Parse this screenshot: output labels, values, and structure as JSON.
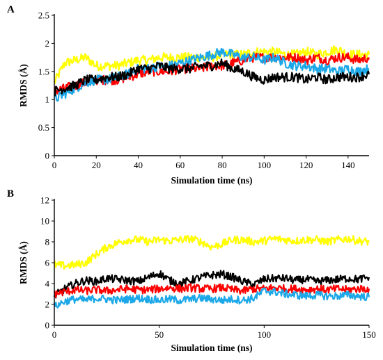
{
  "chart_data": [
    {
      "panel": "A",
      "type": "line",
      "xlabel": "Simulation time (ns)",
      "ylabel": "RMDS (Å)",
      "xlim": [
        0,
        150
      ],
      "ylim": [
        0,
        2.5
      ],
      "xticks": [
        0,
        20,
        40,
        60,
        80,
        100,
        120,
        140
      ],
      "yticks": [
        0,
        0.5,
        1,
        1.5,
        2,
        2.5
      ],
      "grid": false,
      "legend": "none",
      "series": [
        {
          "color": "#ffff00",
          "x": [
            0,
            5,
            10,
            15,
            20,
            25,
            30,
            35,
            40,
            45,
            50,
            55,
            60,
            65,
            70,
            75,
            80,
            85,
            90,
            95,
            100,
            105,
            110,
            115,
            120,
            125,
            130,
            135,
            140,
            145,
            150
          ],
          "y": [
            1.3,
            1.65,
            1.7,
            1.75,
            1.6,
            1.6,
            1.6,
            1.65,
            1.7,
            1.7,
            1.75,
            1.75,
            1.75,
            1.75,
            1.75,
            1.75,
            1.8,
            1.8,
            1.8,
            1.85,
            1.85,
            1.85,
            1.8,
            1.8,
            1.85,
            1.8,
            1.85,
            1.9,
            1.8,
            1.8,
            1.8
          ]
        },
        {
          "color": "#ff0000",
          "x": [
            0,
            5,
            10,
            15,
            20,
            25,
            30,
            35,
            40,
            45,
            50,
            55,
            60,
            65,
            70,
            75,
            80,
            85,
            90,
            95,
            100,
            105,
            110,
            115,
            120,
            125,
            130,
            135,
            140,
            145,
            150
          ],
          "y": [
            1.15,
            1.2,
            1.25,
            1.3,
            1.35,
            1.35,
            1.35,
            1.4,
            1.45,
            1.5,
            1.5,
            1.5,
            1.55,
            1.55,
            1.55,
            1.6,
            1.6,
            1.65,
            1.7,
            1.75,
            1.75,
            1.75,
            1.75,
            1.75,
            1.7,
            1.75,
            1.7,
            1.75,
            1.75,
            1.7,
            1.75
          ]
        },
        {
          "color": "#1ca8e8",
          "x": [
            0,
            5,
            10,
            15,
            20,
            25,
            30,
            35,
            40,
            45,
            50,
            55,
            60,
            65,
            70,
            75,
            80,
            85,
            90,
            95,
            100,
            105,
            110,
            115,
            120,
            125,
            130,
            135,
            140,
            145,
            150
          ],
          "y": [
            1.0,
            1.1,
            1.2,
            1.3,
            1.35,
            1.35,
            1.4,
            1.45,
            1.55,
            1.55,
            1.6,
            1.6,
            1.65,
            1.7,
            1.75,
            1.8,
            1.85,
            1.8,
            1.75,
            1.75,
            1.7,
            1.75,
            1.65,
            1.6,
            1.6,
            1.55,
            1.55,
            1.5,
            1.55,
            1.5,
            1.55
          ]
        },
        {
          "color": "#000000",
          "x": [
            0,
            5,
            10,
            15,
            20,
            25,
            30,
            35,
            40,
            45,
            50,
            55,
            60,
            65,
            70,
            75,
            80,
            85,
            90,
            95,
            100,
            105,
            110,
            115,
            120,
            125,
            130,
            135,
            140,
            145,
            150
          ],
          "y": [
            1.15,
            1.2,
            1.25,
            1.35,
            1.35,
            1.4,
            1.4,
            1.45,
            1.55,
            1.55,
            1.6,
            1.55,
            1.55,
            1.55,
            1.6,
            1.6,
            1.65,
            1.55,
            1.5,
            1.4,
            1.35,
            1.4,
            1.4,
            1.4,
            1.35,
            1.4,
            1.35,
            1.4,
            1.4,
            1.4,
            1.45
          ]
        }
      ]
    },
    {
      "panel": "B",
      "type": "line",
      "xlabel": "Simulation time (ns)",
      "ylabel": "RMDS (Å)",
      "xlim": [
        0,
        150
      ],
      "ylim": [
        0,
        12
      ],
      "xticks": [
        0,
        50,
        100,
        150
      ],
      "yticks": [
        0,
        2,
        4,
        6,
        8,
        10,
        12
      ],
      "grid": false,
      "legend": "none",
      "series": [
        {
          "color": "#ffff00",
          "x": [
            0,
            5,
            10,
            15,
            20,
            25,
            30,
            35,
            40,
            45,
            50,
            55,
            60,
            65,
            70,
            75,
            80,
            85,
            90,
            95,
            100,
            105,
            110,
            115,
            120,
            125,
            130,
            135,
            140,
            145,
            150
          ],
          "y": [
            5.8,
            5.7,
            5.8,
            6.0,
            6.8,
            7.5,
            7.9,
            8.2,
            8.2,
            8.0,
            8.2,
            8.1,
            8.2,
            8.3,
            8.0,
            7.5,
            7.8,
            8.2,
            8.2,
            8.0,
            8.1,
            8.3,
            8.2,
            8.1,
            8.2,
            8.2,
            8.0,
            8.2,
            8.3,
            8.1,
            8.0
          ]
        },
        {
          "color": "#000000",
          "x": [
            0,
            5,
            10,
            15,
            20,
            25,
            30,
            35,
            40,
            45,
            50,
            55,
            60,
            65,
            70,
            75,
            80,
            85,
            90,
            95,
            100,
            105,
            110,
            115,
            120,
            125,
            130,
            135,
            140,
            145,
            150
          ],
          "y": [
            2.8,
            3.5,
            4.0,
            4.3,
            4.2,
            4.5,
            4.4,
            4.3,
            4.2,
            4.6,
            5.0,
            4.3,
            4.0,
            4.3,
            4.6,
            4.8,
            4.9,
            4.6,
            4.2,
            3.9,
            4.4,
            4.5,
            4.5,
            4.3,
            4.4,
            4.2,
            4.3,
            4.4,
            4.5,
            4.4,
            4.6
          ]
        },
        {
          "color": "#ff0000",
          "x": [
            0,
            5,
            10,
            15,
            20,
            25,
            30,
            35,
            40,
            45,
            50,
            55,
            60,
            65,
            70,
            75,
            80,
            85,
            90,
            95,
            100,
            105,
            110,
            115,
            120,
            125,
            130,
            135,
            140,
            145,
            150
          ],
          "y": [
            3.0,
            3.2,
            3.4,
            3.3,
            3.4,
            3.3,
            3.4,
            3.5,
            3.4,
            3.4,
            3.5,
            3.6,
            3.5,
            3.6,
            3.5,
            3.5,
            3.6,
            3.4,
            3.3,
            3.5,
            3.5,
            3.6,
            3.5,
            3.5,
            3.4,
            3.5,
            3.4,
            3.5,
            3.4,
            3.5,
            3.5
          ]
        },
        {
          "color": "#1ca8e8",
          "x": [
            0,
            5,
            10,
            15,
            20,
            25,
            30,
            35,
            40,
            45,
            50,
            55,
            60,
            65,
            70,
            75,
            80,
            85,
            90,
            95,
            100,
            105,
            110,
            115,
            120,
            125,
            130,
            135,
            140,
            145,
            150
          ],
          "y": [
            1.8,
            2.3,
            2.5,
            2.4,
            2.6,
            2.5,
            2.4,
            2.5,
            2.6,
            2.5,
            2.4,
            2.5,
            2.4,
            2.5,
            2.6,
            2.5,
            2.4,
            2.5,
            2.4,
            2.6,
            3.3,
            3.2,
            3.0,
            2.9,
            2.8,
            2.9,
            2.8,
            2.8,
            2.9,
            2.8,
            2.7
          ]
        }
      ]
    }
  ]
}
